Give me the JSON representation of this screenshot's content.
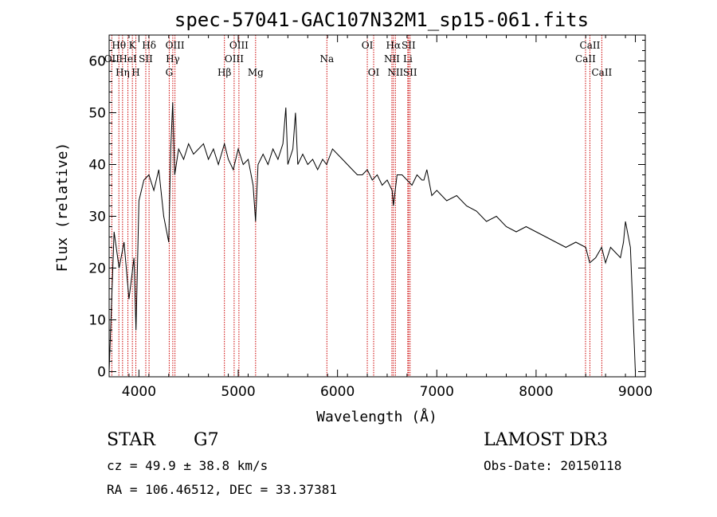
{
  "chart_data": {
    "type": "line",
    "title": "spec-57041-GAC107N32M1_sp15-061.fits",
    "xlabel": "Wavelength (Å)",
    "ylabel": "Flux (relative)",
    "xlim": [
      3700,
      9100
    ],
    "ylim": [
      -1,
      65
    ],
    "x_ticks": [
      4000,
      5000,
      6000,
      7000,
      8000,
      9000
    ],
    "y_ticks": [
      0,
      10,
      20,
      30,
      40,
      50,
      60
    ],
    "grid": false,
    "line_color": "#000000",
    "marker_color": "#cc0000",
    "spectrum": {
      "x": [
        3700,
        3750,
        3800,
        3850,
        3900,
        3950,
        3970,
        4000,
        4050,
        4100,
        4150,
        4200,
        4250,
        4300,
        4320,
        4340,
        4360,
        4400,
        4450,
        4500,
        4550,
        4600,
        4650,
        4700,
        4750,
        4800,
        4861,
        4900,
        4950,
        5000,
        5050,
        5100,
        5150,
        5175,
        5200,
        5250,
        5300,
        5350,
        5400,
        5450,
        5480,
        5500,
        5550,
        5577,
        5600,
        5650,
        5700,
        5750,
        5800,
        5850,
        5890,
        5950,
        6000,
        6050,
        6100,
        6150,
        6200,
        6250,
        6300,
        6350,
        6400,
        6450,
        6500,
        6550,
        6563,
        6600,
        6650,
        6700,
        6750,
        6800,
        6850,
        6870,
        6900,
        6950,
        7000,
        7100,
        7200,
        7300,
        7400,
        7500,
        7600,
        7700,
        7800,
        7900,
        8000,
        8100,
        8200,
        8300,
        8400,
        8500,
        8540,
        8600,
        8660,
        8700,
        8750,
        8800,
        8850,
        8880,
        8900,
        8950,
        9000
      ],
      "y": [
        0,
        27,
        20,
        25,
        14,
        22,
        8,
        33,
        37,
        38,
        35,
        39,
        30,
        25,
        43,
        52,
        38,
        43,
        41,
        44,
        42,
        43,
        44,
        41,
        43,
        40,
        44,
        41,
        39,
        43,
        40,
        41,
        36,
        29,
        40,
        42,
        40,
        43,
        41,
        44,
        51,
        40,
        43,
        50,
        40,
        42,
        40,
        41,
        39,
        41,
        40,
        43,
        42,
        41,
        40,
        39,
        38,
        38,
        39,
        37,
        38,
        36,
        37,
        35,
        32,
        38,
        38,
        37,
        36,
        38,
        37,
        37,
        39,
        34,
        35,
        33,
        34,
        32,
        31,
        29,
        30,
        28,
        27,
        28,
        27,
        26,
        25,
        24,
        25,
        24,
        21,
        22,
        24,
        21,
        24,
        23,
        22,
        25,
        29,
        24,
        0
      ]
    },
    "spectral_lines": [
      {
        "name": "Hθ",
        "wavelength": 3798,
        "row": 0
      },
      {
        "name": "OII",
        "wavelength": 3727,
        "row": 1
      },
      {
        "name": "Hη",
        "wavelength": 3835,
        "row": 2
      },
      {
        "name": "K",
        "wavelength": 3934,
        "row": 0
      },
      {
        "name": "HeI",
        "wavelength": 3889,
        "row": 1
      },
      {
        "name": "H",
        "wavelength": 3969,
        "row": 2
      },
      {
        "name": "Hδ",
        "wavelength": 4102,
        "row": 0
      },
      {
        "name": "SII",
        "wavelength": 4069,
        "row": 1
      },
      {
        "name": "OIII",
        "wavelength": 4363,
        "row": 0
      },
      {
        "name": "Hγ",
        "wavelength": 4341,
        "row": 1
      },
      {
        "name": "G",
        "wavelength": 4305,
        "row": 2
      },
      {
        "name": "Hβ",
        "wavelength": 4861,
        "row": 2
      },
      {
        "name": "OIII",
        "wavelength": 4959,
        "row": 1
      },
      {
        "name": "OIII",
        "wavelength": 5007,
        "row": 0
      },
      {
        "name": "Mg",
        "wavelength": 5175,
        "row": 2
      },
      {
        "name": "Na",
        "wavelength": 5893,
        "row": 1
      },
      {
        "name": "OI",
        "wavelength": 6300,
        "row": 0
      },
      {
        "name": "OI",
        "wavelength": 6364,
        "row": 2
      },
      {
        "name": "NII",
        "wavelength": 6548,
        "row": 1
      },
      {
        "name": "Hα",
        "wavelength": 6563,
        "row": 0
      },
      {
        "name": "NII",
        "wavelength": 6583,
        "row": 2
      },
      {
        "name": "Li",
        "wavelength": 6708,
        "row": 1
      },
      {
        "name": "SII",
        "wavelength": 6716,
        "row": 0
      },
      {
        "name": "SII",
        "wavelength": 6731,
        "row": 2
      },
      {
        "name": "CaII",
        "wavelength": 8498,
        "row": 1
      },
      {
        "name": "CaII",
        "wavelength": 8542,
        "row": 0
      },
      {
        "name": "CaII",
        "wavelength": 8662,
        "row": 2
      }
    ]
  },
  "info": {
    "object_class": "STAR",
    "subclass": "G7",
    "survey": "LAMOST DR3",
    "velocity": "cz = 49.9 ± 38.8 km/s",
    "obs_date": "Obs-Date: 20150118",
    "coords": "RA = 106.46512, DEC =  33.37381"
  }
}
